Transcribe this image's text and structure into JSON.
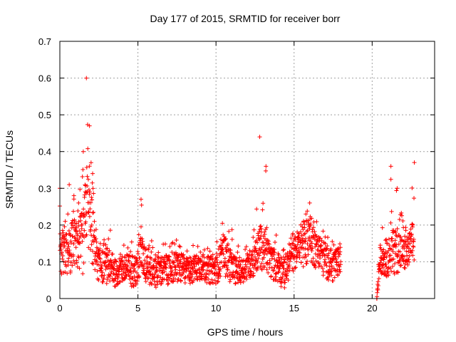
{
  "chart_data": {
    "type": "scatter",
    "title": "Day 177 of 2015, SRMTID for receiver borr",
    "xlabel": "GPS time / hours",
    "ylabel": "SRMTID / TECUs",
    "xlim": [
      0,
      24
    ],
    "ylim": [
      0,
      0.7
    ],
    "xticks": [
      0,
      5,
      10,
      15,
      20
    ],
    "yticks": [
      0,
      0.1,
      0.2,
      0.3,
      0.4,
      0.5,
      0.6,
      0.7
    ],
    "xtick_labels": [
      "0",
      "5",
      "10",
      "15",
      "20"
    ],
    "ytick_labels": [
      "0",
      "0.1",
      "0.2",
      "0.3",
      "0.4",
      "0.5",
      "0.6",
      "0.7"
    ],
    "grid": true,
    "marker": "+",
    "color": "#ff0000",
    "series": [
      {
        "name": "SRMTID",
        "envelope": [
          [
            0.0,
            0.06,
            0.14,
            0.3
          ],
          [
            0.3,
            0.07,
            0.15,
            0.25
          ],
          [
            0.6,
            0.05,
            0.14,
            0.31
          ],
          [
            0.9,
            0.08,
            0.18,
            0.28
          ],
          [
            1.2,
            0.07,
            0.17,
            0.26
          ],
          [
            1.5,
            0.06,
            0.18,
            0.4
          ],
          [
            1.7,
            0.15,
            0.3,
            0.6
          ],
          [
            1.9,
            0.12,
            0.25,
            0.47
          ],
          [
            2.1,
            0.08,
            0.2,
            0.34
          ],
          [
            2.4,
            0.05,
            0.11,
            0.2
          ],
          [
            2.8,
            0.04,
            0.1,
            0.16
          ],
          [
            3.2,
            0.04,
            0.09,
            0.19
          ],
          [
            3.6,
            0.03,
            0.08,
            0.14
          ],
          [
            4.0,
            0.04,
            0.09,
            0.16
          ],
          [
            4.5,
            0.03,
            0.09,
            0.17
          ],
          [
            5.0,
            0.03,
            0.09,
            0.18
          ],
          [
            5.2,
            0.08,
            0.15,
            0.27
          ],
          [
            5.5,
            0.04,
            0.1,
            0.18
          ],
          [
            6.0,
            0.03,
            0.08,
            0.15
          ],
          [
            6.5,
            0.03,
            0.09,
            0.15
          ],
          [
            7.0,
            0.04,
            0.09,
            0.16
          ],
          [
            7.5,
            0.04,
            0.1,
            0.17
          ],
          [
            8.0,
            0.04,
            0.09,
            0.14
          ],
          [
            8.5,
            0.04,
            0.09,
            0.15
          ],
          [
            9.0,
            0.05,
            0.1,
            0.18
          ],
          [
            9.5,
            0.04,
            0.09,
            0.14
          ],
          [
            10.0,
            0.04,
            0.09,
            0.15
          ],
          [
            10.5,
            0.06,
            0.14,
            0.23
          ],
          [
            11.0,
            0.04,
            0.1,
            0.19
          ],
          [
            11.5,
            0.04,
            0.08,
            0.14
          ],
          [
            12.0,
            0.05,
            0.1,
            0.16
          ],
          [
            12.5,
            0.06,
            0.12,
            0.21
          ],
          [
            12.8,
            0.08,
            0.16,
            0.44
          ],
          [
            13.2,
            0.07,
            0.14,
            0.36
          ],
          [
            13.6,
            0.05,
            0.11,
            0.2
          ],
          [
            14.0,
            0.04,
            0.1,
            0.17
          ],
          [
            14.4,
            0.02,
            0.08,
            0.14
          ],
          [
            14.8,
            0.07,
            0.12,
            0.17
          ],
          [
            15.2,
            0.08,
            0.15,
            0.22
          ],
          [
            15.6,
            0.08,
            0.17,
            0.23
          ],
          [
            16.0,
            0.1,
            0.19,
            0.26
          ],
          [
            16.4,
            0.08,
            0.15,
            0.22
          ],
          [
            16.8,
            0.06,
            0.13,
            0.19
          ],
          [
            17.2,
            0.05,
            0.11,
            0.17
          ],
          [
            17.6,
            0.04,
            0.1,
            0.17
          ],
          [
            18.0,
            0.07,
            0.12,
            0.16
          ],
          [
            20.3,
            0.0,
            0.0,
            0.0
          ],
          [
            20.5,
            0.07,
            0.12,
            0.19
          ],
          [
            20.8,
            0.06,
            0.11,
            0.2
          ],
          [
            21.2,
            0.06,
            0.14,
            0.36
          ],
          [
            21.6,
            0.07,
            0.16,
            0.3
          ],
          [
            22.0,
            0.07,
            0.13,
            0.22
          ],
          [
            22.3,
            0.08,
            0.14,
            0.23
          ],
          [
            22.7,
            0.09,
            0.18,
            0.37
          ]
        ]
      }
    ]
  }
}
